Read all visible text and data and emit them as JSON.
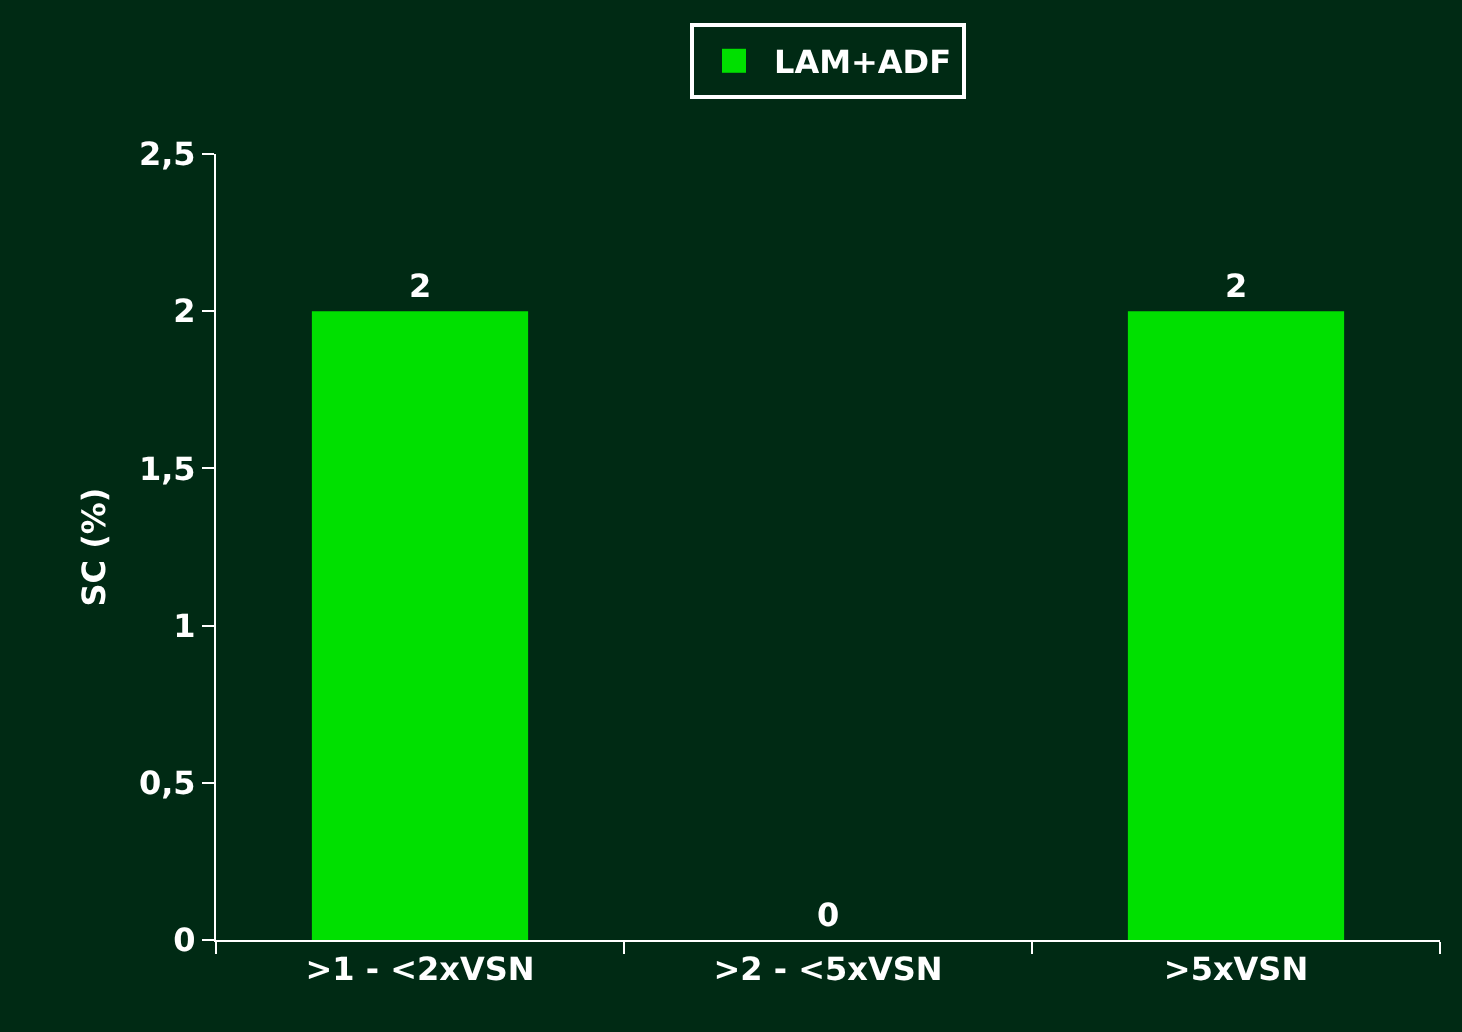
{
  "chart_data": {
    "type": "bar",
    "ylabel": "SC (%)",
    "categories": [
      ">1 - <2xVSN",
      ">2 - <5xVSN",
      ">5xVSN"
    ],
    "series": [
      {
        "name": "LAM+ADF",
        "color": "#00e000",
        "values": [
          2,
          0,
          2
        ]
      }
    ],
    "ylim": [
      0,
      2.5
    ],
    "yticks": [
      0,
      {
        "value": 0.5,
        "label": "0,5"
      },
      1,
      {
        "value": 1.5,
        "label": "1,5"
      },
      2,
      {
        "value": 2.5,
        "label": "2,5"
      }
    ],
    "data_labels": true,
    "grid": false,
    "legend": "top"
  }
}
